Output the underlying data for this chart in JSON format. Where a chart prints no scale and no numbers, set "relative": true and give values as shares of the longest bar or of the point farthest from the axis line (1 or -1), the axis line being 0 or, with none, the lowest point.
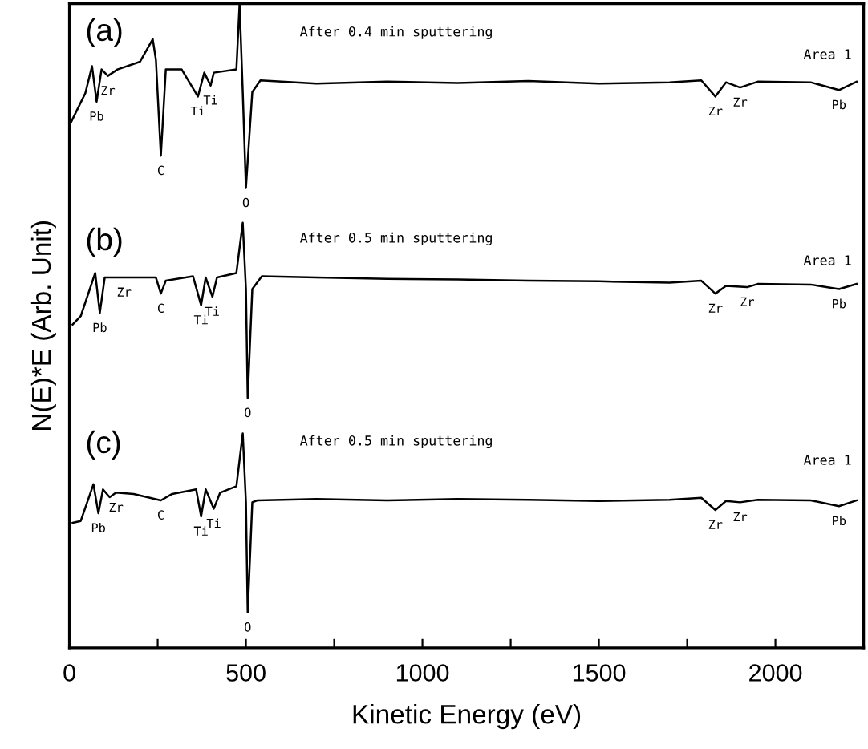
{
  "chart_data": {
    "type": "line",
    "relative": true,
    "xlabel": "Kinetic Energy (eV)",
    "ylabel": "N(E)*E (Arb. Unit)",
    "xlim": [
      0,
      2250
    ],
    "xticks": [
      0,
      {
        "value": 250,
        "label": null
      },
      500,
      {
        "value": 750,
        "label": null
      },
      1000,
      {
        "value": 1250,
        "label": null
      },
      1500,
      {
        "value": 1750,
        "label": null
      },
      2000
    ],
    "grid": false,
    "marker": "none",
    "line_style": "solid",
    "series": [
      {
        "color": "#000000",
        "x": [
          0,
          18,
          45,
          64,
          77,
          91,
          109,
          136,
          200,
          236,
          245,
          259,
          273,
          318,
          364,
          382,
          400,
          409,
          473,
          482,
          491,
          500,
          518,
          541,
          700,
          900,
          1100,
          1300,
          1500,
          1700,
          1790,
          1830,
          1860,
          1900,
          1950,
          2100,
          2180,
          2230
        ],
        "values": [
          0.811,
          0.831,
          0.861,
          0.903,
          0.848,
          0.898,
          0.888,
          0.898,
          0.91,
          0.945,
          0.913,
          0.764,
          0.898,
          0.898,
          0.856,
          0.893,
          0.873,
          0.893,
          0.898,
          1.0,
          0.863,
          0.714,
          0.863,
          0.881,
          0.876,
          0.879,
          0.877,
          0.88,
          0.876,
          0.878,
          0.881,
          0.856,
          0.878,
          0.87,
          0.879,
          0.878,
          0.866,
          0.879
        ]
      },
      {
        "color": "#000000",
        "x": [
          9,
          32,
          73,
          86,
          100,
          155,
          245,
          259,
          273,
          350,
          373,
          386,
          405,
          418,
          473,
          491,
          500,
          505,
          518,
          545,
          700,
          900,
          1100,
          1300,
          1500,
          1700,
          1790,
          1830,
          1860,
          1920,
          1950,
          2100,
          2180,
          2230
        ],
        "values": [
          0.502,
          0.515,
          0.582,
          0.52,
          0.575,
          0.575,
          0.575,
          0.55,
          0.57,
          0.577,
          0.532,
          0.575,
          0.545,
          0.575,
          0.582,
          0.66,
          0.557,
          0.388,
          0.557,
          0.577,
          0.575,
          0.573,
          0.572,
          0.57,
          0.569,
          0.567,
          0.57,
          0.55,
          0.562,
          0.56,
          0.565,
          0.564,
          0.557,
          0.565
        ]
      },
      {
        "color": "#000000",
        "x": [
          9,
          32,
          68,
          82,
          95,
          114,
          132,
          182,
          259,
          291,
          359,
          373,
          386,
          409,
          427,
          473,
          491,
          500,
          505,
          518,
          532,
          700,
          900,
          1100,
          1300,
          1500,
          1700,
          1790,
          1830,
          1860,
          1900,
          1950,
          2100,
          2180,
          2230
        ],
        "values": [
          0.194,
          0.197,
          0.254,
          0.209,
          0.246,
          0.234,
          0.241,
          0.239,
          0.229,
          0.239,
          0.246,
          0.204,
          0.246,
          0.216,
          0.241,
          0.251,
          0.333,
          0.226,
          0.055,
          0.226,
          0.229,
          0.231,
          0.229,
          0.231,
          0.23,
          0.228,
          0.23,
          0.233,
          0.214,
          0.228,
          0.226,
          0.23,
          0.229,
          0.22,
          0.229
        ]
      }
    ],
    "annotations": [
      "(a)",
      "(b)",
      "(c)",
      "After 0.4 min sputtering",
      "After 0.5 min sputtering",
      "After 0.5 min sputtering",
      "Area 1",
      "Area 1",
      "Area 1",
      {
        "text": "Pb",
        "x": 77,
        "y": 0.848
      },
      {
        "text": "Zr",
        "x": 109,
        "y": 0.888
      },
      {
        "text": "C",
        "x": 259,
        "y": 0.764
      },
      {
        "text": "Ti",
        "x": 364,
        "y": 0.856
      },
      {
        "text": "Ti",
        "x": 400,
        "y": 0.873
      },
      {
        "text": "O",
        "x": 500,
        "y": 0.714
      },
      {
        "text": "Zr",
        "x": 1830,
        "y": 0.856
      },
      {
        "text": "Zr",
        "x": 1900,
        "y": 0.87
      },
      {
        "text": "Pb",
        "x": 2180,
        "y": 0.866
      },
      {
        "text": "Pb",
        "x": 86,
        "y": 0.52
      },
      {
        "text": "Zr",
        "x": 155,
        "y": 0.575
      },
      {
        "text": "C",
        "x": 259,
        "y": 0.55
      },
      {
        "text": "Ti",
        "x": 373,
        "y": 0.532
      },
      {
        "text": "Ti",
        "x": 405,
        "y": 0.545
      },
      {
        "text": "O",
        "x": 505,
        "y": 0.388
      },
      {
        "text": "Zr",
        "x": 1830,
        "y": 0.55
      },
      {
        "text": "Zr",
        "x": 1920,
        "y": 0.56
      },
      {
        "text": "Pb",
        "x": 2180,
        "y": 0.557
      },
      {
        "text": "Pb",
        "x": 82,
        "y": 0.209
      },
      {
        "text": "Zr",
        "x": 132,
        "y": 0.241
      },
      {
        "text": "C",
        "x": 259,
        "y": 0.229
      },
      {
        "text": "Ti",
        "x": 373,
        "y": 0.204
      },
      {
        "text": "Ti",
        "x": 409,
        "y": 0.216
      },
      {
        "text": "O",
        "x": 505,
        "y": 0.055
      },
      {
        "text": "Zr",
        "x": 1830,
        "y": 0.214
      },
      {
        "text": "Zr",
        "x": 1900,
        "y": 0.226
      },
      {
        "text": "Pb",
        "x": 2180,
        "y": 0.22
      }
    ]
  }
}
